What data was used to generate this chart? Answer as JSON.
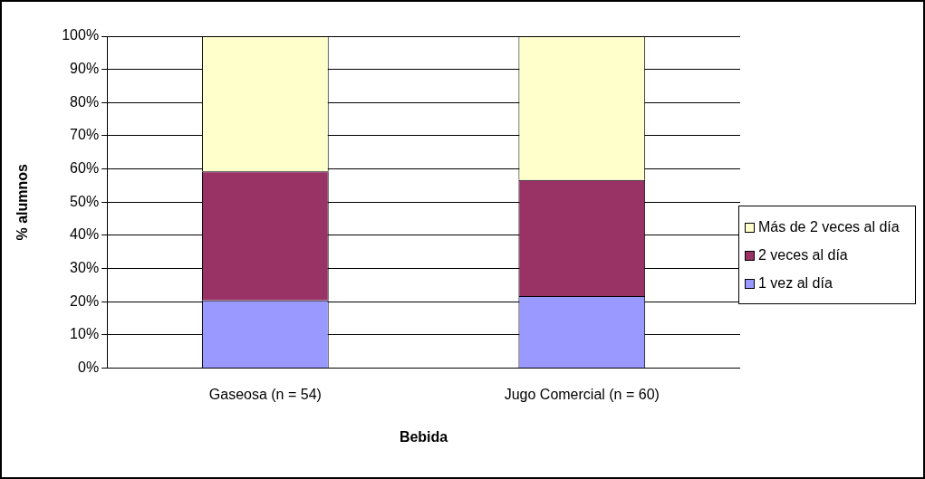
{
  "chart_data": {
    "type": "bar",
    "stacked": true,
    "xlabel": "Bebida",
    "ylabel": "% alumnos",
    "categories": [
      "Gaseosa (n = 54)",
      "Jugo Comercial (n = 60)"
    ],
    "series": [
      {
        "name": "1 vez al día",
        "color": "#9999ff",
        "values": [
          20.4,
          21.7
        ]
      },
      {
        "name": "2 veces al día",
        "color": "#993366",
        "values": [
          38.9,
          35.0
        ]
      },
      {
        "name": "Más de 2 veces al día",
        "color": "#ffffcc",
        "values": [
          40.7,
          43.3
        ]
      }
    ],
    "ylim": [
      0,
      100
    ],
    "yticks": [
      {
        "value": 0,
        "label": "0%"
      },
      {
        "value": 10,
        "label": "10%"
      },
      {
        "value": 20,
        "label": "20%"
      },
      {
        "value": 30,
        "label": "30%"
      },
      {
        "value": 40,
        "label": "40%"
      },
      {
        "value": 50,
        "label": "50%"
      },
      {
        "value": 60,
        "label": "60%"
      },
      {
        "value": 70,
        "label": "70%"
      },
      {
        "value": 80,
        "label": "80%"
      },
      {
        "value": 90,
        "label": "90%"
      },
      {
        "value": 100,
        "label": "100%"
      }
    ],
    "grid": "y",
    "legend": "right"
  }
}
